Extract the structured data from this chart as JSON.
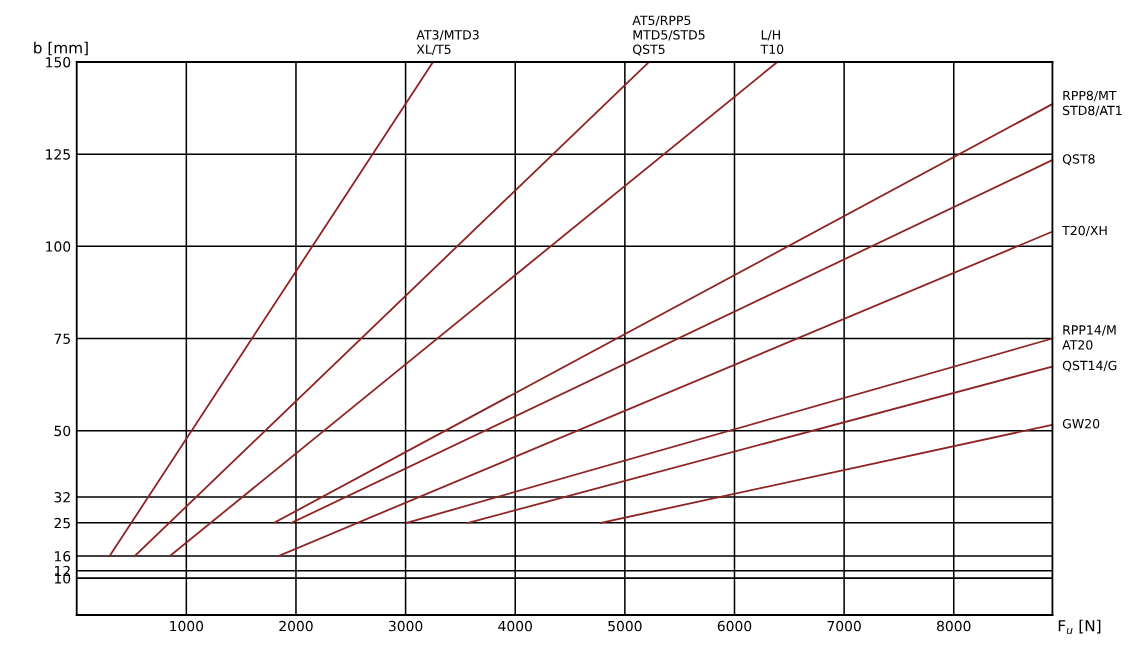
{
  "chart_data": {
    "type": "line",
    "xlabel": "F$_{u}$ [N]",
    "ylabel": "b [mm]",
    "xlim": [
      0,
      8900
    ],
    "xticks": [
      1000,
      2000,
      3000,
      4000,
      5000,
      6000,
      7000,
      8000
    ],
    "ylim": [
      0,
      150
    ],
    "yticks": [
      10,
      12,
      16,
      25,
      32,
      50,
      75,
      100,
      125,
      150
    ],
    "grid": true,
    "legend": false,
    "marker": "none",
    "line_style": "solid",
    "series": [
      {
        "name": "AT3/MTD3\nXL/T5",
        "color": "#8e2424",
        "x": [
          300,
          3250
        ],
        "values": [
          16,
          150
        ]
      },
      {
        "name": "AT5/RPP5\nMTD5/STD5\nQST5",
        "color": "#8e2424",
        "x": [
          530,
          5220
        ],
        "values": [
          16,
          150
        ]
      },
      {
        "name": "L/H\nT10",
        "color": "#8e2424",
        "x": [
          850,
          6390
        ],
        "values": [
          16,
          150
        ]
      },
      {
        "name": "RPP8/MT\nSTD8/AT1",
        "color": "#8e2424",
        "x": [
          1800,
          8900
        ],
        "values": [
          25,
          138.6
        ]
      },
      {
        "name": "QST8",
        "color": "#8e2424",
        "x": [
          1960,
          8900
        ],
        "values": [
          25,
          123.4
        ]
      },
      {
        "name": "T20/XH",
        "color": "#8e2424",
        "x": [
          1840,
          8900
        ],
        "values": [
          16,
          104
        ]
      },
      {
        "name": "RPP14/M\nAT20",
        "color": "#8e2424",
        "x": [
          3010,
          8900
        ],
        "values": [
          25,
          75
        ]
      },
      {
        "name": "QST14/G",
        "color": "#8e2424",
        "x": [
          3570,
          8900
        ],
        "values": [
          25,
          67.4
        ]
      },
      {
        "name": "GW20",
        "color": "#8e2424",
        "x": [
          4780,
          8900
        ],
        "values": [
          25,
          51.6
        ]
      }
    ]
  }
}
